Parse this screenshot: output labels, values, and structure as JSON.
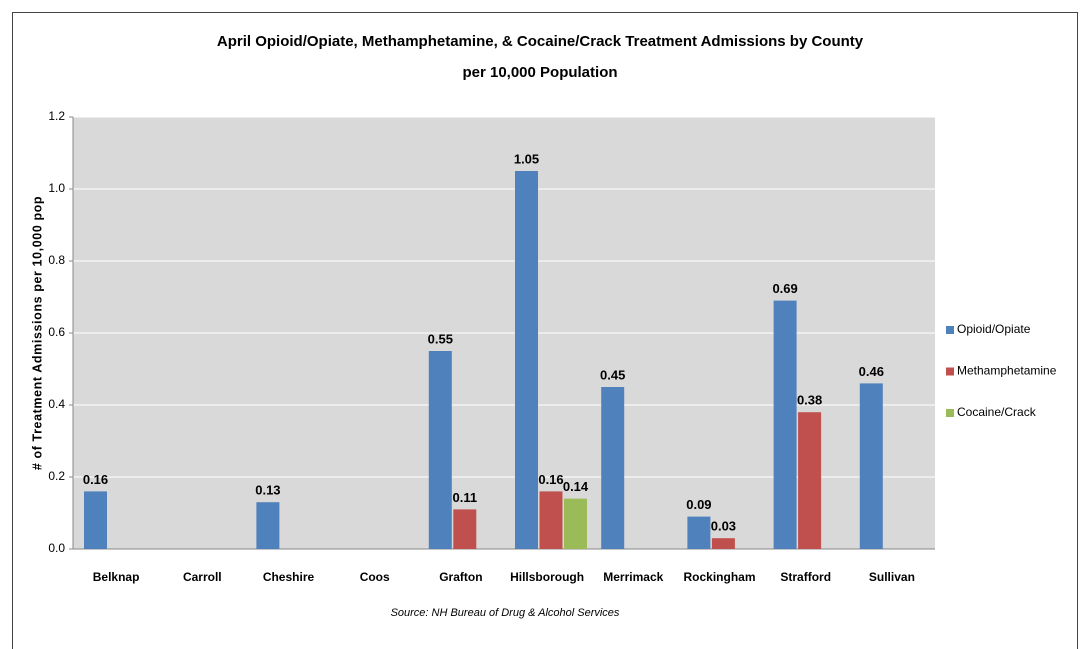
{
  "chart_data": {
    "type": "bar",
    "title": "April Opioid/Opiate, Methamphetamine, & Cocaine/Crack Treatment Admissions by County",
    "subtitle": "per 10,000 Population",
    "y_label": "# of Treatment Admissions per 10,000 pop",
    "source": "Source: NH Bureau of Drug & Alcohol Services",
    "categories": [
      "Belknap",
      "Carroll",
      "Cheshire",
      "Coos",
      "Grafton",
      "Hillsborough",
      "Merrimack",
      "Rockingham",
      "Strafford",
      "Sullivan"
    ],
    "series": [
      {
        "name": "Opioid/Opiate",
        "color": "#4f81bd",
        "values": [
          0.16,
          null,
          0.13,
          null,
          0.55,
          1.05,
          0.45,
          0.09,
          0.69,
          0.46
        ]
      },
      {
        "name": "Methamphetamine",
        "color": "#c0504d",
        "values": [
          null,
          null,
          null,
          null,
          0.11,
          0.16,
          null,
          0.03,
          0.38,
          null
        ]
      },
      {
        "name": "Cocaine/Crack",
        "color": "#9bbb59",
        "values": [
          null,
          null,
          null,
          null,
          null,
          0.14,
          null,
          null,
          null,
          null
        ]
      }
    ],
    "ylim": [
      0,
      1.2
    ],
    "yticks": [
      {
        "value": 0,
        "label": "0.0"
      },
      0.2,
      0.4,
      0.6,
      0.8,
      {
        "value": 1,
        "label": "1.0"
      },
      1.2
    ],
    "grid": true,
    "legend": "right"
  }
}
